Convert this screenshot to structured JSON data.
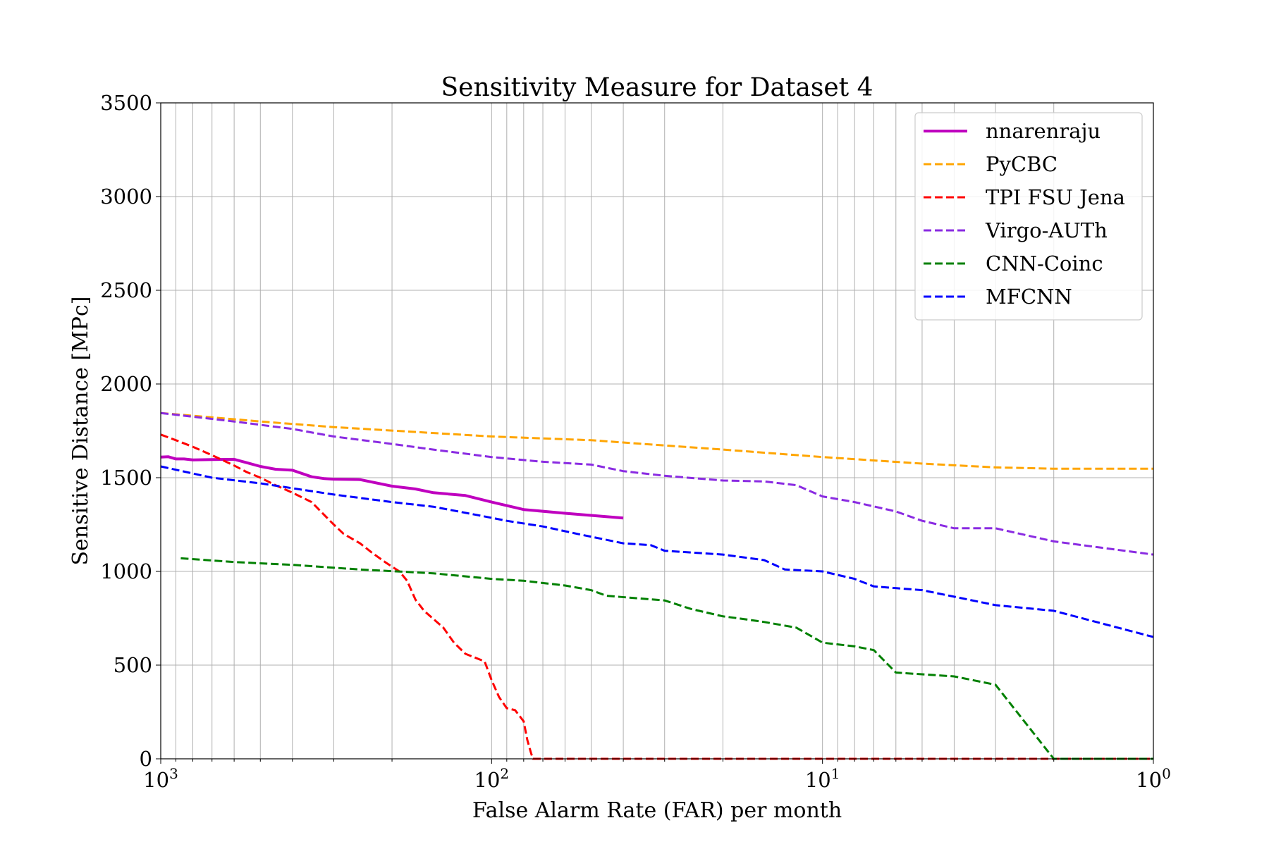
{
  "chart_data": {
    "type": "line",
    "title": "Sensitivity Measure for Dataset 4",
    "xlabel": "False Alarm Rate (FAR) per month",
    "ylabel": "Sensitive Distance [MPc]",
    "x_scale": "log",
    "x_reversed": true,
    "xlim": [
      1000,
      1
    ],
    "ylim": [
      0,
      3500
    ],
    "x_ticks": [
      {
        "value": 1000,
        "base": "10",
        "exp": "3"
      },
      {
        "value": 100,
        "base": "10",
        "exp": "2"
      },
      {
        "value": 10,
        "base": "10",
        "exp": "1"
      },
      {
        "value": 1,
        "base": "10",
        "exp": "0"
      }
    ],
    "y_ticks": [
      0,
      500,
      1000,
      1500,
      2000,
      2500,
      3000,
      3500
    ],
    "grid": true,
    "legend_position": "top-right",
    "series": [
      {
        "name": "nnarenraju",
        "color": "#bf00bf",
        "style": "solid",
        "points": [
          [
            1000,
            1610
          ],
          [
            950,
            1612
          ],
          [
            900,
            1600
          ],
          [
            850,
            1600
          ],
          [
            800,
            1595
          ],
          [
            700,
            1597
          ],
          [
            600,
            1598
          ],
          [
            550,
            1580
          ],
          [
            500,
            1560
          ],
          [
            450,
            1545
          ],
          [
            400,
            1540
          ],
          [
            350,
            1505
          ],
          [
            320,
            1495
          ],
          [
            300,
            1492
          ],
          [
            250,
            1490
          ],
          [
            200,
            1455
          ],
          [
            170,
            1440
          ],
          [
            150,
            1420
          ],
          [
            120,
            1405
          ],
          [
            100,
            1370
          ],
          [
            80,
            1330
          ],
          [
            60,
            1310
          ],
          [
            40,
            1285
          ]
        ]
      },
      {
        "name": "PyCBC",
        "color": "#ffa500",
        "style": "dashed",
        "points": [
          [
            1000,
            1845
          ],
          [
            500,
            1800
          ],
          [
            300,
            1770
          ],
          [
            100,
            1720
          ],
          [
            50,
            1700
          ],
          [
            20,
            1650
          ],
          [
            10,
            1610
          ],
          [
            5,
            1575
          ],
          [
            3,
            1555
          ],
          [
            2,
            1548
          ],
          [
            1,
            1548
          ]
        ]
      },
      {
        "name": "TPI FSU Jena",
        "color": "#ff0000",
        "style": "dashed",
        "points": [
          [
            1000,
            1730
          ],
          [
            900,
            1700
          ],
          [
            800,
            1665
          ],
          [
            700,
            1620
          ],
          [
            600,
            1565
          ],
          [
            550,
            1530
          ],
          [
            500,
            1500
          ],
          [
            450,
            1460
          ],
          [
            400,
            1420
          ],
          [
            350,
            1370
          ],
          [
            320,
            1300
          ],
          [
            300,
            1250
          ],
          [
            280,
            1200
          ],
          [
            250,
            1150
          ],
          [
            230,
            1100
          ],
          [
            210,
            1050
          ],
          [
            190,
            1000
          ],
          [
            180,
            950
          ],
          [
            170,
            850
          ],
          [
            160,
            790
          ],
          [
            140,
            700
          ],
          [
            130,
            620
          ],
          [
            120,
            560
          ],
          [
            105,
            520
          ],
          [
            100,
            420
          ],
          [
            95,
            330
          ],
          [
            90,
            270
          ],
          [
            85,
            260
          ],
          [
            80,
            200
          ],
          [
            78,
            100
          ],
          [
            76,
            30
          ],
          [
            75,
            0
          ],
          [
            60,
            0
          ],
          [
            10,
            0
          ],
          [
            1,
            0
          ]
        ]
      },
      {
        "name": "Virgo-AUTh",
        "color": "#8a2be2",
        "style": "dashed",
        "points": [
          [
            1000,
            1845
          ],
          [
            600,
            1800
          ],
          [
            400,
            1760
          ],
          [
            300,
            1720
          ],
          [
            200,
            1680
          ],
          [
            150,
            1650
          ],
          [
            100,
            1610
          ],
          [
            70,
            1585
          ],
          [
            50,
            1570
          ],
          [
            40,
            1535
          ],
          [
            30,
            1510
          ],
          [
            20,
            1485
          ],
          [
            15,
            1480
          ],
          [
            12,
            1460
          ],
          [
            10,
            1400
          ],
          [
            8,
            1370
          ],
          [
            6,
            1320
          ],
          [
            5,
            1270
          ],
          [
            4,
            1230
          ],
          [
            3,
            1230
          ],
          [
            2,
            1160
          ],
          [
            1,
            1090
          ]
        ]
      },
      {
        "name": "CNN-Coinc",
        "color": "#008000",
        "style": "dashed",
        "points": [
          [
            870,
            1070
          ],
          [
            600,
            1050
          ],
          [
            400,
            1035
          ],
          [
            250,
            1010
          ],
          [
            150,
            990
          ],
          [
            100,
            960
          ],
          [
            80,
            950
          ],
          [
            60,
            925
          ],
          [
            50,
            900
          ],
          [
            45,
            870
          ],
          [
            30,
            845
          ],
          [
            25,
            800
          ],
          [
            20,
            760
          ],
          [
            18,
            750
          ],
          [
            15,
            730
          ],
          [
            12,
            700
          ],
          [
            10,
            620
          ],
          [
            8,
            600
          ],
          [
            7,
            580
          ],
          [
            6,
            460
          ],
          [
            4,
            440
          ],
          [
            3,
            395
          ],
          [
            2,
            0
          ],
          [
            1,
            0
          ]
        ]
      },
      {
        "name": "MFCNN",
        "color": "#0000ff",
        "style": "dashed",
        "points": [
          [
            1000,
            1560
          ],
          [
            700,
            1500
          ],
          [
            500,
            1470
          ],
          [
            300,
            1410
          ],
          [
            200,
            1370
          ],
          [
            150,
            1345
          ],
          [
            110,
            1300
          ],
          [
            90,
            1270
          ],
          [
            70,
            1240
          ],
          [
            55,
            1200
          ],
          [
            40,
            1150
          ],
          [
            33,
            1140
          ],
          [
            30,
            1110
          ],
          [
            20,
            1090
          ],
          [
            15,
            1060
          ],
          [
            13,
            1010
          ],
          [
            10,
            1000
          ],
          [
            8,
            960
          ],
          [
            7,
            920
          ],
          [
            5,
            900
          ],
          [
            4,
            865
          ],
          [
            3,
            820
          ],
          [
            2,
            790
          ],
          [
            1,
            650
          ]
        ]
      }
    ]
  }
}
